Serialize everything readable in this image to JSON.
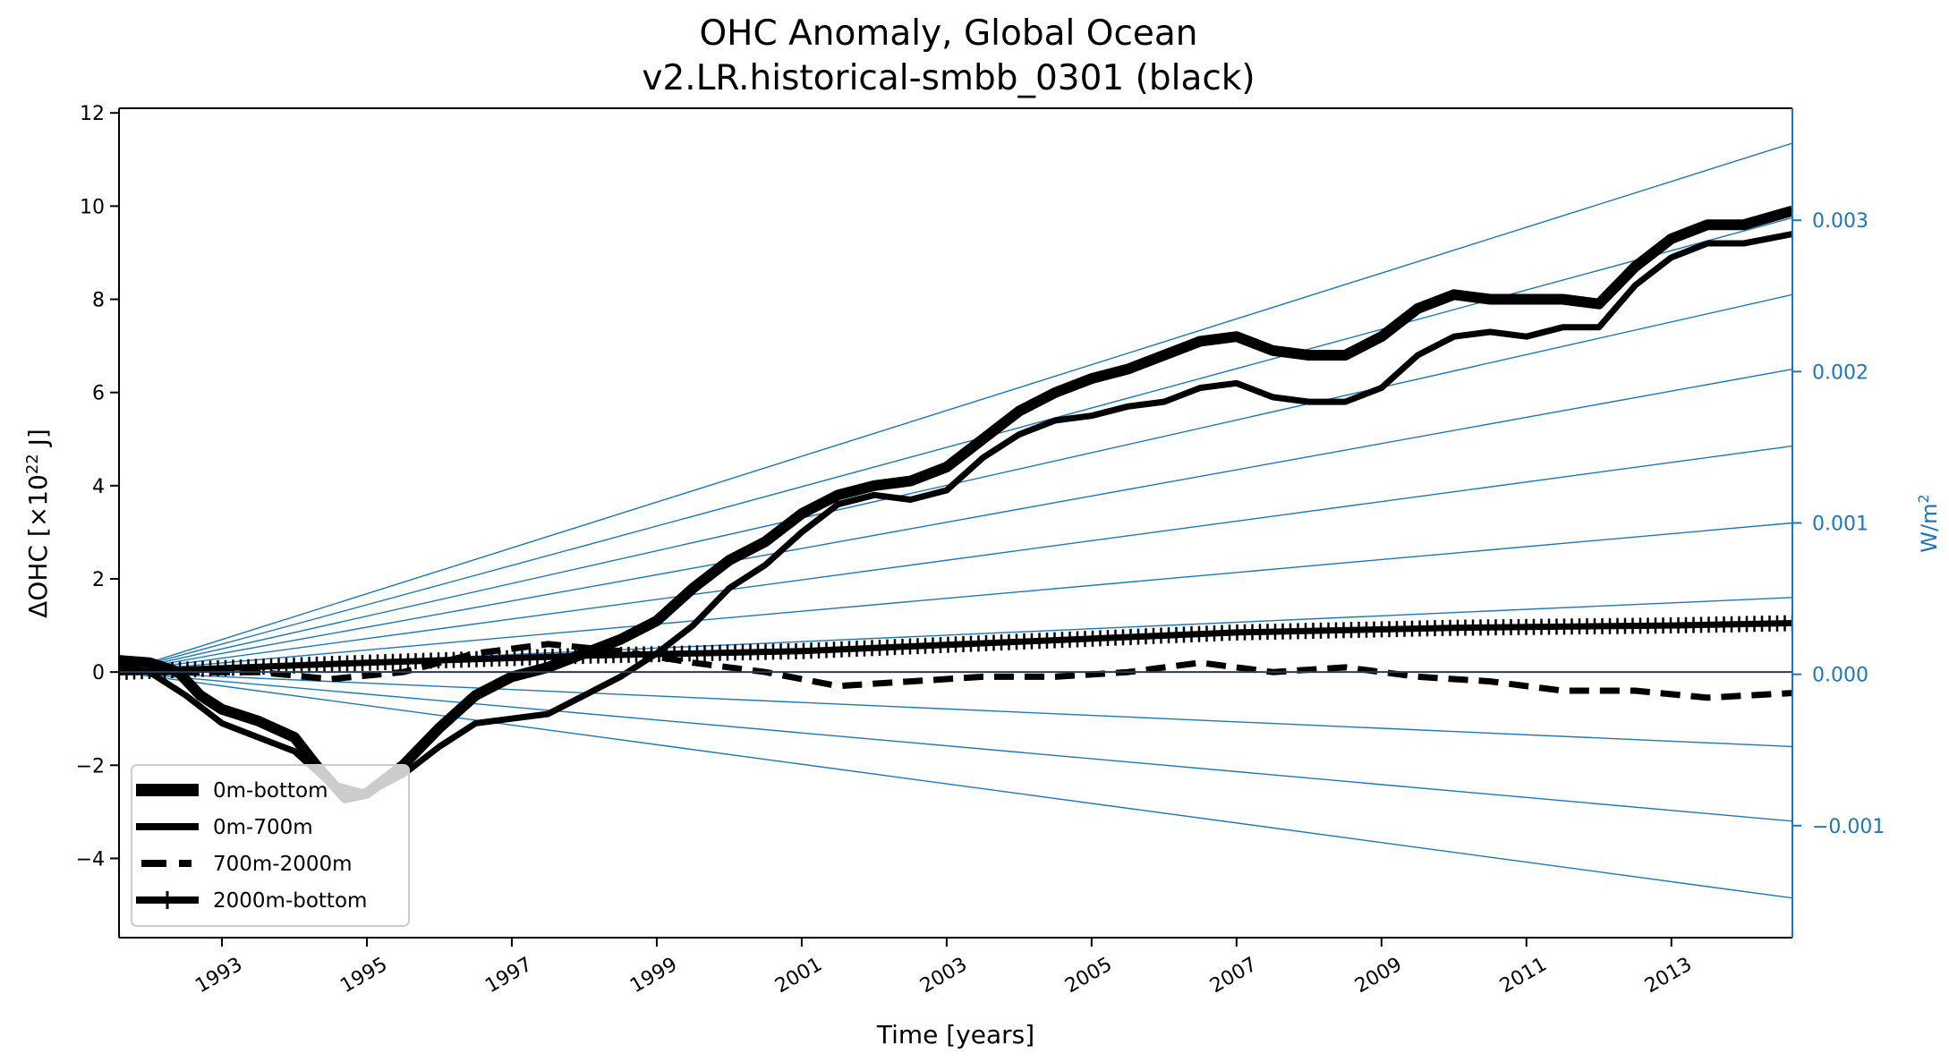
{
  "chart_data": {
    "type": "line",
    "title": "OHC Anomaly, Global Ocean",
    "subtitle": "v2.LR.historical-smbb_0301 (black)",
    "xlabel": "Time [years]",
    "ylabel": "ΔOHC [×10",
    "ylabel_sup": "22",
    "ylabel_suffix": " J]",
    "y2label": "W/m",
    "y2label_sup": "2",
    "xlim": [
      1991.58,
      2014.67
    ],
    "ylim": [
      -5.7,
      12.1
    ],
    "y2lim": [
      -0.00174,
      0.00374
    ],
    "grid": false,
    "legend_position": "lower-left",
    "x_ticks": [
      1993,
      1995,
      1997,
      1999,
      2001,
      2003,
      2005,
      2007,
      2009,
      2011,
      2013
    ],
    "x_tick_labels": [
      "1993",
      "1995",
      "1997",
      "1999",
      "2001",
      "2003",
      "2005",
      "2007",
      "2009",
      "2011",
      "2013"
    ],
    "y_ticks": [
      -4,
      -2,
      0,
      2,
      4,
      6,
      8,
      10,
      12
    ],
    "y_tick_labels": [
      "−4",
      "−2",
      "0",
      "2",
      "4",
      "6",
      "8",
      "10",
      "12"
    ],
    "y2_ticks": [
      -0.001,
      0.0,
      0.001,
      0.002,
      0.003
    ],
    "y2_tick_labels": [
      "−0.001",
      "0.000",
      "0.001",
      "0.002",
      "0.003"
    ],
    "colors": {
      "series": "#000000",
      "right_axis": "#1f77b4",
      "reference_lines": "#1f77b4"
    },
    "series": [
      {
        "name": "0m-bottom",
        "style": "solid-thick",
        "x": [
          1991.58,
          1992.0,
          1992.4,
          1992.7,
          1993.0,
          1993.5,
          1994.0,
          1994.3,
          1994.7,
          1995.0,
          1995.5,
          1996.0,
          1996.5,
          1997.0,
          1997.5,
          1998.0,
          1998.5,
          1999.0,
          1999.5,
          2000.0,
          2000.5,
          2001.0,
          2001.5,
          2002.0,
          2002.5,
          2003.0,
          2003.5,
          2004.0,
          2004.5,
          2005.0,
          2005.5,
          2006.0,
          2006.5,
          2007.0,
          2007.5,
          2008.0,
          2008.5,
          2009.0,
          2009.5,
          2010.0,
          2010.5,
          2011.0,
          2011.5,
          2012.0,
          2012.5,
          2013.0,
          2013.5,
          2014.0,
          2014.67
        ],
        "values": [
          0.25,
          0.2,
          0.0,
          -0.5,
          -0.8,
          -1.05,
          -1.4,
          -2.0,
          -2.7,
          -2.6,
          -2.0,
          -1.2,
          -0.5,
          -0.1,
          0.1,
          0.4,
          0.7,
          1.1,
          1.8,
          2.4,
          2.8,
          3.4,
          3.8,
          4.0,
          4.1,
          4.4,
          5.0,
          5.6,
          6.0,
          6.3,
          6.5,
          6.8,
          7.1,
          7.2,
          6.9,
          6.8,
          6.8,
          7.2,
          7.8,
          8.1,
          8.0,
          8.0,
          8.0,
          7.9,
          8.7,
          9.3,
          9.6,
          9.6,
          9.9
        ]
      },
      {
        "name": "0m-700m",
        "style": "solid",
        "x": [
          1991.58,
          1992.0,
          1992.5,
          1993.0,
          1993.5,
          1994.0,
          1994.5,
          1995.0,
          1995.5,
          1996.0,
          1996.5,
          1997.0,
          1997.5,
          1998.0,
          1998.5,
          1999.0,
          1999.5,
          2000.0,
          2000.5,
          2001.0,
          2001.5,
          2002.0,
          2002.5,
          2003.0,
          2003.5,
          2004.0,
          2004.5,
          2005.0,
          2005.5,
          2006.0,
          2006.5,
          2007.0,
          2007.5,
          2008.0,
          2008.5,
          2009.0,
          2009.5,
          2010.0,
          2010.5,
          2011.0,
          2011.5,
          2012.0,
          2012.5,
          2013.0,
          2013.5,
          2014.0,
          2014.67
        ],
        "values": [
          0.1,
          0.0,
          -0.5,
          -1.1,
          -1.4,
          -1.7,
          -2.4,
          -2.6,
          -2.2,
          -1.6,
          -1.1,
          -1.0,
          -0.9,
          -0.5,
          -0.1,
          0.4,
          1.0,
          1.8,
          2.3,
          3.0,
          3.6,
          3.8,
          3.7,
          3.9,
          4.6,
          5.1,
          5.4,
          5.5,
          5.7,
          5.8,
          6.1,
          6.2,
          5.9,
          5.8,
          5.8,
          6.1,
          6.8,
          7.2,
          7.3,
          7.2,
          7.4,
          7.4,
          8.3,
          8.9,
          9.2,
          9.2,
          9.4
        ]
      },
      {
        "name": "700m-2000m",
        "style": "dashed",
        "x": [
          1991.58,
          1992.5,
          1993.5,
          1994.5,
          1995.5,
          1996.5,
          1997.5,
          1998.5,
          1999.5,
          2000.5,
          2001.5,
          2002.5,
          2003.5,
          2004.5,
          2005.5,
          2006.5,
          2007.5,
          2008.5,
          2009.5,
          2010.5,
          2011.5,
          2012.5,
          2013.5,
          2014.67
        ],
        "values": [
          0.0,
          0.0,
          0.0,
          -0.15,
          0.0,
          0.4,
          0.6,
          0.45,
          0.2,
          0.0,
          -0.3,
          -0.2,
          -0.1,
          -0.1,
          0.0,
          0.2,
          0.0,
          0.1,
          -0.1,
          -0.2,
          -0.4,
          -0.4,
          -0.55,
          -0.45
        ]
      },
      {
        "name": "2000m-bottom",
        "style": "solid-plus-markers",
        "x": [
          1991.58,
          1995.0,
          1998.0,
          2001.0,
          2004.0,
          2007.0,
          2010.0,
          2013.0,
          2014.67
        ],
        "values": [
          0.0,
          0.2,
          0.35,
          0.45,
          0.65,
          0.85,
          0.95,
          1.0,
          1.05
        ]
      }
    ],
    "reference_lines": {
      "description": "constant-flux reference lines from origin (W/m² on right axis)",
      "start_x": 1991.58,
      "end_values_left_axis": [
        11.35,
        9.75,
        8.1,
        6.5,
        4.85,
        3.2,
        1.6,
        0.0,
        -1.6,
        -3.2,
        -4.85
      ]
    }
  }
}
